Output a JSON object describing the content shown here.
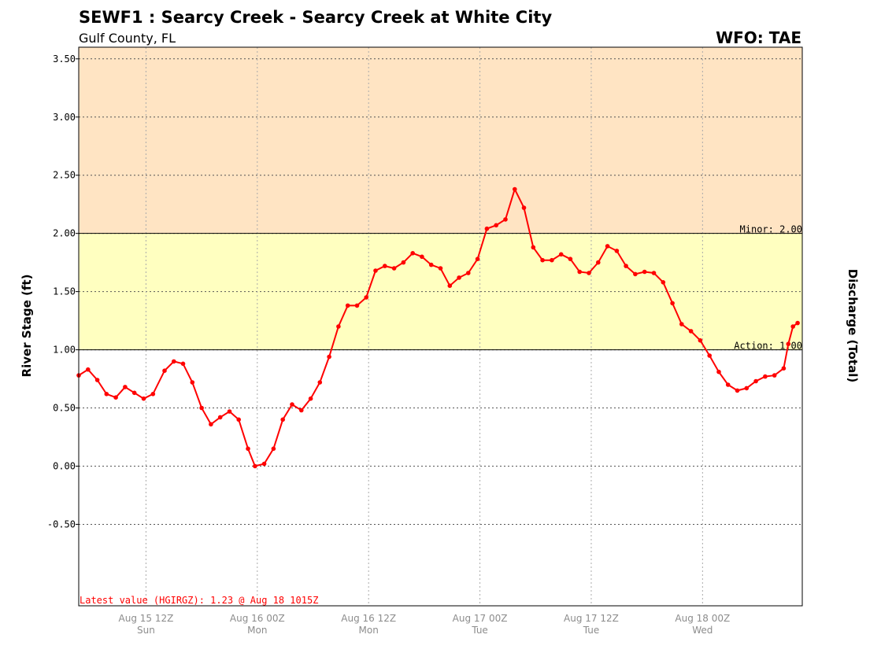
{
  "header": {
    "title": "SEWF1 : Searcy Creek - Searcy Creek at White City",
    "subtitle": "Gulf County, FL",
    "wfo": "WFO: TAE"
  },
  "colors": {
    "minor_band": "#ffe4c3",
    "action_band": "#ffffc0",
    "series": "#ff0000"
  },
  "chart_data": {
    "type": "line",
    "ylabel": "River Stage (ft)",
    "y2label": "Discharge (Total)",
    "ylim": [
      -1.2,
      3.6
    ],
    "yticks": [
      3.5,
      3.0,
      2.5,
      2.0,
      1.5,
      1.0,
      0.5,
      0.0,
      -0.5
    ],
    "ytick_labels": [
      "3.50",
      "3.00",
      "2.50",
      "2.00",
      "1.50",
      "1.00",
      "0.50",
      "0.00",
      "-0.50"
    ],
    "xlim": [
      "Aug 15 04:45Z",
      "Aug 18 10:45Z"
    ],
    "xticks": [
      {
        "time": "Aug 15 12Z",
        "label": "Aug 15 12Z",
        "day": "Sun"
      },
      {
        "time": "Aug 16 00Z",
        "label": "Aug 16 00Z",
        "day": "Mon"
      },
      {
        "time": "Aug 16 12Z",
        "label": "Aug 16 12Z",
        "day": "Mon"
      },
      {
        "time": "Aug 17 00Z",
        "label": "Aug 17 00Z",
        "day": "Tue"
      },
      {
        "time": "Aug 17 12Z",
        "label": "Aug 17 12Z",
        "day": "Tue"
      },
      {
        "time": "Aug 18 00Z",
        "label": "Aug 18 00Z",
        "day": "Wed"
      }
    ],
    "grid": true,
    "thresholds": [
      {
        "name": "Minor",
        "label": "Minor: 2.00",
        "value": 2.0,
        "band_top": 3.6
      },
      {
        "name": "Action",
        "label": "Action: 1.00",
        "value": 1.0,
        "band_top": 2.0
      }
    ],
    "latest_value_text": "Latest value (HGIRGZ): 1.23 @ Aug 18 1015Z",
    "series": [
      {
        "values": [
          {
            "x": "Aug 15 04:45Z",
            "y": 0.78
          },
          {
            "x": "Aug 15 05:45Z",
            "y": 0.83
          },
          {
            "x": "Aug 15 06:45Z",
            "y": 0.74
          },
          {
            "x": "Aug 15 07:45Z",
            "y": 0.62
          },
          {
            "x": "Aug 15 08:45Z",
            "y": 0.59
          },
          {
            "x": "Aug 15 09:45Z",
            "y": 0.68
          },
          {
            "x": "Aug 15 10:45Z",
            "y": 0.63
          },
          {
            "x": "Aug 15 11:45Z",
            "y": 0.58
          },
          {
            "x": "Aug 15 12:45Z",
            "y": 0.62
          },
          {
            "x": "Aug 15 14:00Z",
            "y": 0.82
          },
          {
            "x": "Aug 15 15:00Z",
            "y": 0.9
          },
          {
            "x": "Aug 15 16:00Z",
            "y": 0.88
          },
          {
            "x": "Aug 15 17:00Z",
            "y": 0.72
          },
          {
            "x": "Aug 15 18:00Z",
            "y": 0.5
          },
          {
            "x": "Aug 15 19:00Z",
            "y": 0.36
          },
          {
            "x": "Aug 15 20:00Z",
            "y": 0.42
          },
          {
            "x": "Aug 15 21:00Z",
            "y": 0.47
          },
          {
            "x": "Aug 15 22:00Z",
            "y": 0.4
          },
          {
            "x": "Aug 15 23:00Z",
            "y": 0.15
          },
          {
            "x": "Aug 15 23:45Z",
            "y": 0.0
          },
          {
            "x": "Aug 16 00:45Z",
            "y": 0.02
          },
          {
            "x": "Aug 16 01:45Z",
            "y": 0.15
          },
          {
            "x": "Aug 16 02:45Z",
            "y": 0.4
          },
          {
            "x": "Aug 16 03:45Z",
            "y": 0.53
          },
          {
            "x": "Aug 16 04:45Z",
            "y": 0.48
          },
          {
            "x": "Aug 16 05:45Z",
            "y": 0.58
          },
          {
            "x": "Aug 16 06:45Z",
            "y": 0.72
          },
          {
            "x": "Aug 16 07:45Z",
            "y": 0.94
          },
          {
            "x": "Aug 16 08:45Z",
            "y": 1.2
          },
          {
            "x": "Aug 16 09:45Z",
            "y": 1.38
          },
          {
            "x": "Aug 16 10:45Z",
            "y": 1.38
          },
          {
            "x": "Aug 16 11:45Z",
            "y": 1.45
          },
          {
            "x": "Aug 16 12:45Z",
            "y": 1.68
          },
          {
            "x": "Aug 16 13:45Z",
            "y": 1.72
          },
          {
            "x": "Aug 16 14:45Z",
            "y": 1.7
          },
          {
            "x": "Aug 16 15:45Z",
            "y": 1.75
          },
          {
            "x": "Aug 16 16:45Z",
            "y": 1.83
          },
          {
            "x": "Aug 16 17:45Z",
            "y": 1.8
          },
          {
            "x": "Aug 16 18:45Z",
            "y": 1.73
          },
          {
            "x": "Aug 16 19:45Z",
            "y": 1.7
          },
          {
            "x": "Aug 16 20:45Z",
            "y": 1.55
          },
          {
            "x": "Aug 16 21:45Z",
            "y": 1.62
          },
          {
            "x": "Aug 16 22:45Z",
            "y": 1.66
          },
          {
            "x": "Aug 16 23:45Z",
            "y": 1.78
          },
          {
            "x": "Aug 17 00:45Z",
            "y": 2.04
          },
          {
            "x": "Aug 17 01:45Z",
            "y": 2.07
          },
          {
            "x": "Aug 17 02:45Z",
            "y": 2.12
          },
          {
            "x": "Aug 17 03:45Z",
            "y": 2.38
          },
          {
            "x": "Aug 17 04:45Z",
            "y": 2.22
          },
          {
            "x": "Aug 17 05:45Z",
            "y": 1.88
          },
          {
            "x": "Aug 17 06:45Z",
            "y": 1.77
          },
          {
            "x": "Aug 17 07:45Z",
            "y": 1.77
          },
          {
            "x": "Aug 17 08:45Z",
            "y": 1.82
          },
          {
            "x": "Aug 17 09:45Z",
            "y": 1.78
          },
          {
            "x": "Aug 17 10:45Z",
            "y": 1.67
          },
          {
            "x": "Aug 17 11:45Z",
            "y": 1.66
          },
          {
            "x": "Aug 17 12:45Z",
            "y": 1.75
          },
          {
            "x": "Aug 17 13:45Z",
            "y": 1.89
          },
          {
            "x": "Aug 17 14:45Z",
            "y": 1.85
          },
          {
            "x": "Aug 17 15:45Z",
            "y": 1.72
          },
          {
            "x": "Aug 17 16:45Z",
            "y": 1.65
          },
          {
            "x": "Aug 17 17:45Z",
            "y": 1.67
          },
          {
            "x": "Aug 17 18:45Z",
            "y": 1.66
          },
          {
            "x": "Aug 17 19:45Z",
            "y": 1.58
          },
          {
            "x": "Aug 17 20:45Z",
            "y": 1.4
          },
          {
            "x": "Aug 17 21:45Z",
            "y": 1.22
          },
          {
            "x": "Aug 17 22:45Z",
            "y": 1.16
          },
          {
            "x": "Aug 17 23:45Z",
            "y": 1.08
          },
          {
            "x": "Aug 18 00:45Z",
            "y": 0.95
          },
          {
            "x": "Aug 18 01:45Z",
            "y": 0.81
          },
          {
            "x": "Aug 18 02:45Z",
            "y": 0.7
          },
          {
            "x": "Aug 18 03:45Z",
            "y": 0.65
          },
          {
            "x": "Aug 18 04:45Z",
            "y": 0.67
          },
          {
            "x": "Aug 18 05:45Z",
            "y": 0.73
          },
          {
            "x": "Aug 18 06:45Z",
            "y": 0.77
          },
          {
            "x": "Aug 18 07:45Z",
            "y": 0.78
          },
          {
            "x": "Aug 18 08:45Z",
            "y": 0.84
          },
          {
            "x": "Aug 18 09:15Z",
            "y": 1.05
          },
          {
            "x": "Aug 18 09:45Z",
            "y": 1.2
          },
          {
            "x": "Aug 18 10:15Z",
            "y": 1.23
          }
        ]
      }
    ]
  }
}
